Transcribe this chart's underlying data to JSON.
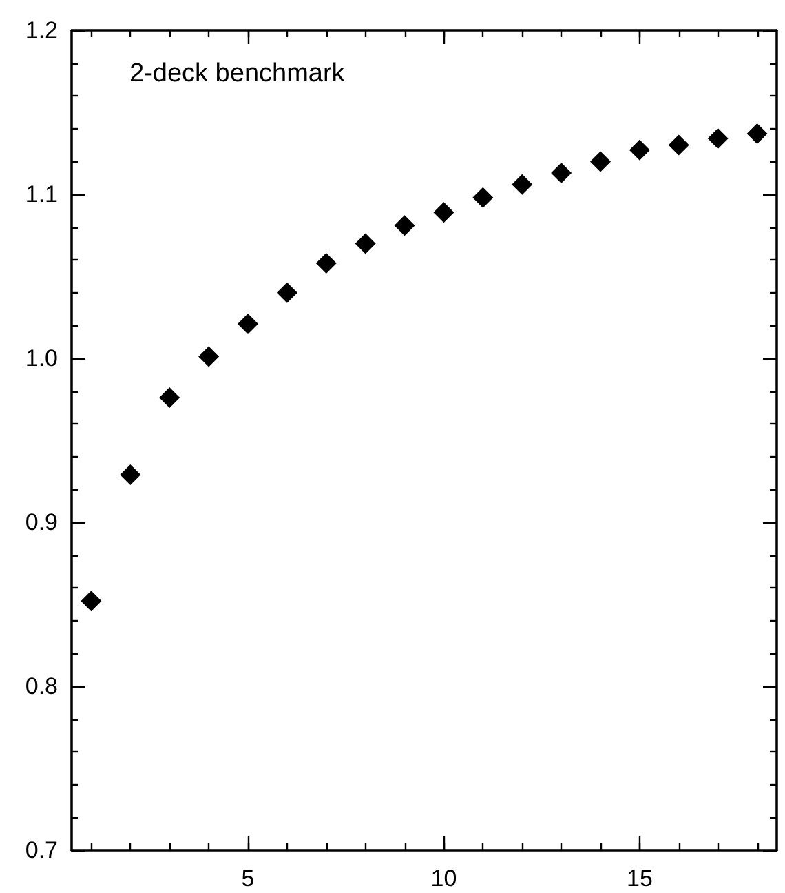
{
  "chart_data": {
    "type": "scatter",
    "annotations": [
      "2-deck benchmark"
    ],
    "x": [
      1,
      2,
      3,
      4,
      5,
      6,
      7,
      8,
      9,
      10,
      11,
      12,
      13,
      14,
      15,
      16,
      17,
      18
    ],
    "series": [
      {
        "color": "#000000",
        "values": [
          0.852,
          0.929,
          0.976,
          1.001,
          1.021,
          1.04,
          1.058,
          1.07,
          1.081,
          1.089,
          1.098,
          1.106,
          1.113,
          1.12,
          1.127,
          1.13,
          1.134,
          1.137
        ]
      }
    ],
    "xlim": [
      0.5,
      18.5
    ],
    "xticks": [
      5,
      10,
      15
    ],
    "ylim": [
      0.7,
      1.2
    ],
    "yticks": [
      0.7,
      0.8,
      0.9,
      {
        "value": 1.0,
        "label": "1.0"
      },
      1.1,
      1.2
    ],
    "marker": "diamond"
  }
}
